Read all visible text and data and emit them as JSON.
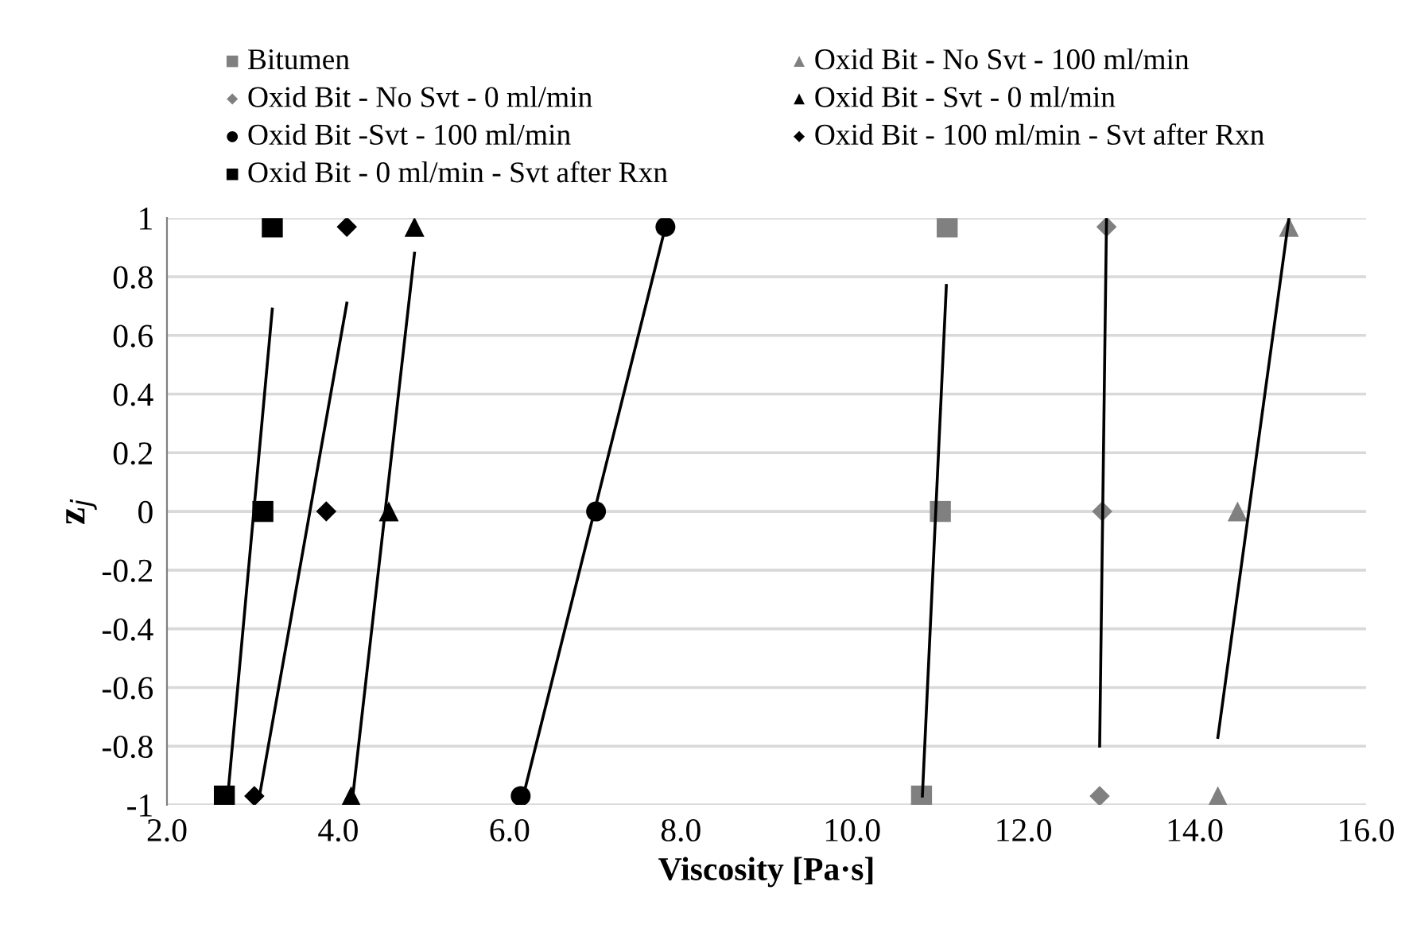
{
  "chart_data": {
    "type": "scatter",
    "xlabel": "Viscosity [Pa·s]",
    "ylabel": "z$_{j}$",
    "xlim": [
      2.0,
      16.0
    ],
    "xticks": [
      {
        "value": 2,
        "label": "2.0"
      },
      {
        "value": 4,
        "label": "4.0"
      },
      {
        "value": 6,
        "label": "6.0"
      },
      {
        "value": 8,
        "label": "8.0"
      },
      {
        "value": 10,
        "label": "10.0"
      },
      {
        "value": 12,
        "label": "12.0"
      },
      {
        "value": 14,
        "label": "14.0"
      },
      {
        "value": 16,
        "label": "16.0"
      }
    ],
    "ylim": [
      -1,
      1
    ],
    "yticks": [
      -1,
      -0.8,
      -0.6,
      -0.4,
      -0.2,
      0,
      0.2,
      0.4,
      0.6,
      0.8,
      1
    ],
    "grid": "y",
    "legend": "top",
    "series": [
      {
        "name": "Bitumen",
        "color": "#808080",
        "marker": "square",
        "x": [
          11.11,
          11.03,
          10.81
        ],
        "values": [
          0.97,
          0,
          -0.97
        ]
      },
      {
        "name": "Oxid Bit - No Svt - 100 ml/min",
        "color": "#808080",
        "marker": "triangle",
        "x": [
          15.1,
          14.5,
          14.27
        ],
        "values": [
          0.97,
          0,
          -0.97
        ]
      },
      {
        "name": "Oxid Bit - No Svt - 0 ml/min",
        "color": "#808080",
        "marker": "diamond",
        "x": [
          12.97,
          12.92,
          12.89
        ],
        "values": [
          0.97,
          0,
          -0.97
        ]
      },
      {
        "name": "Oxid Bit - Svt - 0 ml/min",
        "color": "#000000",
        "marker": "triangle",
        "x": [
          4.89,
          4.59,
          4.15
        ],
        "values": [
          0.97,
          0,
          -0.97
        ]
      },
      {
        "name": "Oxid Bit -Svt - 100 ml/min",
        "color": "#000000",
        "marker": "circle",
        "x": [
          7.82,
          7.01,
          6.13
        ],
        "values": [
          0.97,
          0,
          -0.97
        ]
      },
      {
        "name": "Oxid Bit - 100 ml/min - Svt after Rxn",
        "color": "#000000",
        "marker": "diamond",
        "x": [
          4.1,
          3.86,
          3.02
        ],
        "values": [
          0.97,
          0,
          -0.97
        ]
      },
      {
        "name": "Oxid Bit - 0 ml/min - Svt after Rxn",
        "color": "#000000",
        "marker": "square",
        "x": [
          3.23,
          3.12,
          2.67
        ],
        "values": [
          0.97,
          0,
          -0.97
        ]
      },
      {
        "type": "line",
        "color": "#000000",
        "x": [
          2.71,
          3.23
        ],
        "values": [
          -0.97,
          0.69
        ]
      },
      {
        "type": "line",
        "color": "#000000",
        "x": [
          3.08,
          4.1
        ],
        "values": [
          -0.97,
          0.71
        ]
      },
      {
        "type": "line",
        "color": "#000000",
        "x": [
          4.17,
          4.89
        ],
        "values": [
          -0.97,
          0.88
        ]
      },
      {
        "type": "line",
        "color": "#000000",
        "x": [
          6.16,
          7.82
        ],
        "values": [
          -0.97,
          0.97
        ]
      },
      {
        "type": "line",
        "color": "#000000",
        "x": [
          10.82,
          11.1
        ],
        "values": [
          -0.97,
          0.77
        ]
      },
      {
        "type": "line",
        "color": "#000000",
        "x": [
          12.89,
          12.97
        ],
        "values": [
          -0.8,
          1.0
        ]
      },
      {
        "type": "line",
        "color": "#000000",
        "x": [
          14.27,
          15.1
        ],
        "values": [
          -0.77,
          1.0
        ]
      }
    ]
  }
}
